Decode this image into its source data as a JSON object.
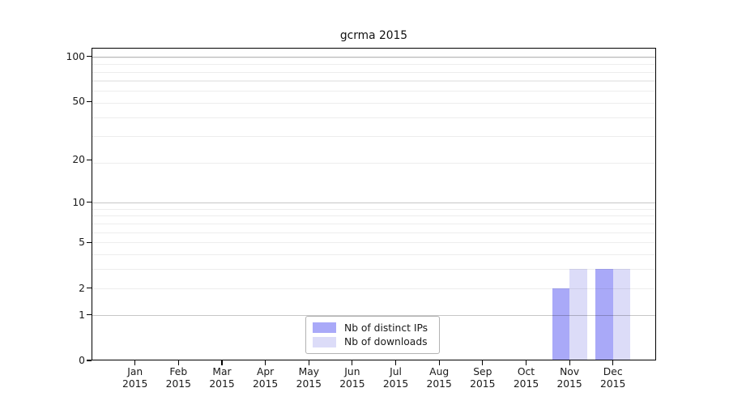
{
  "chart_data": {
    "type": "bar",
    "title": "gcrma 2015",
    "categories": [
      "Jan",
      "Feb",
      "Mar",
      "Apr",
      "May",
      "Jun",
      "Jul",
      "Aug",
      "Sep",
      "Oct",
      "Nov",
      "Dec"
    ],
    "x_year_label": "2015",
    "series": [
      {
        "name": "Nb of distinct IPs",
        "color": "#a9a9f8",
        "values": [
          0,
          0,
          0,
          0,
          0,
          0,
          0,
          0,
          0,
          0,
          2,
          3
        ]
      },
      {
        "name": "Nb of downloads",
        "color": "#dcdcf8",
        "values": [
          0,
          0,
          0,
          0,
          0,
          0,
          0,
          0,
          0,
          0,
          3,
          3
        ]
      }
    ],
    "y_axis": {
      "scale": "log10(1+value)",
      "ticks": [
        0,
        1,
        2,
        5,
        10,
        20,
        50,
        100
      ],
      "range_top": 114
    },
    "gridlines": {
      "major": [
        1,
        10,
        100
      ],
      "minor": [
        2,
        3,
        4,
        5,
        6,
        7,
        8,
        9,
        19,
        29,
        39,
        49,
        59,
        69,
        79,
        89,
        99
      ]
    },
    "legend_position": "inside-bottom-center",
    "xlabel": "",
    "ylabel": ""
  }
}
